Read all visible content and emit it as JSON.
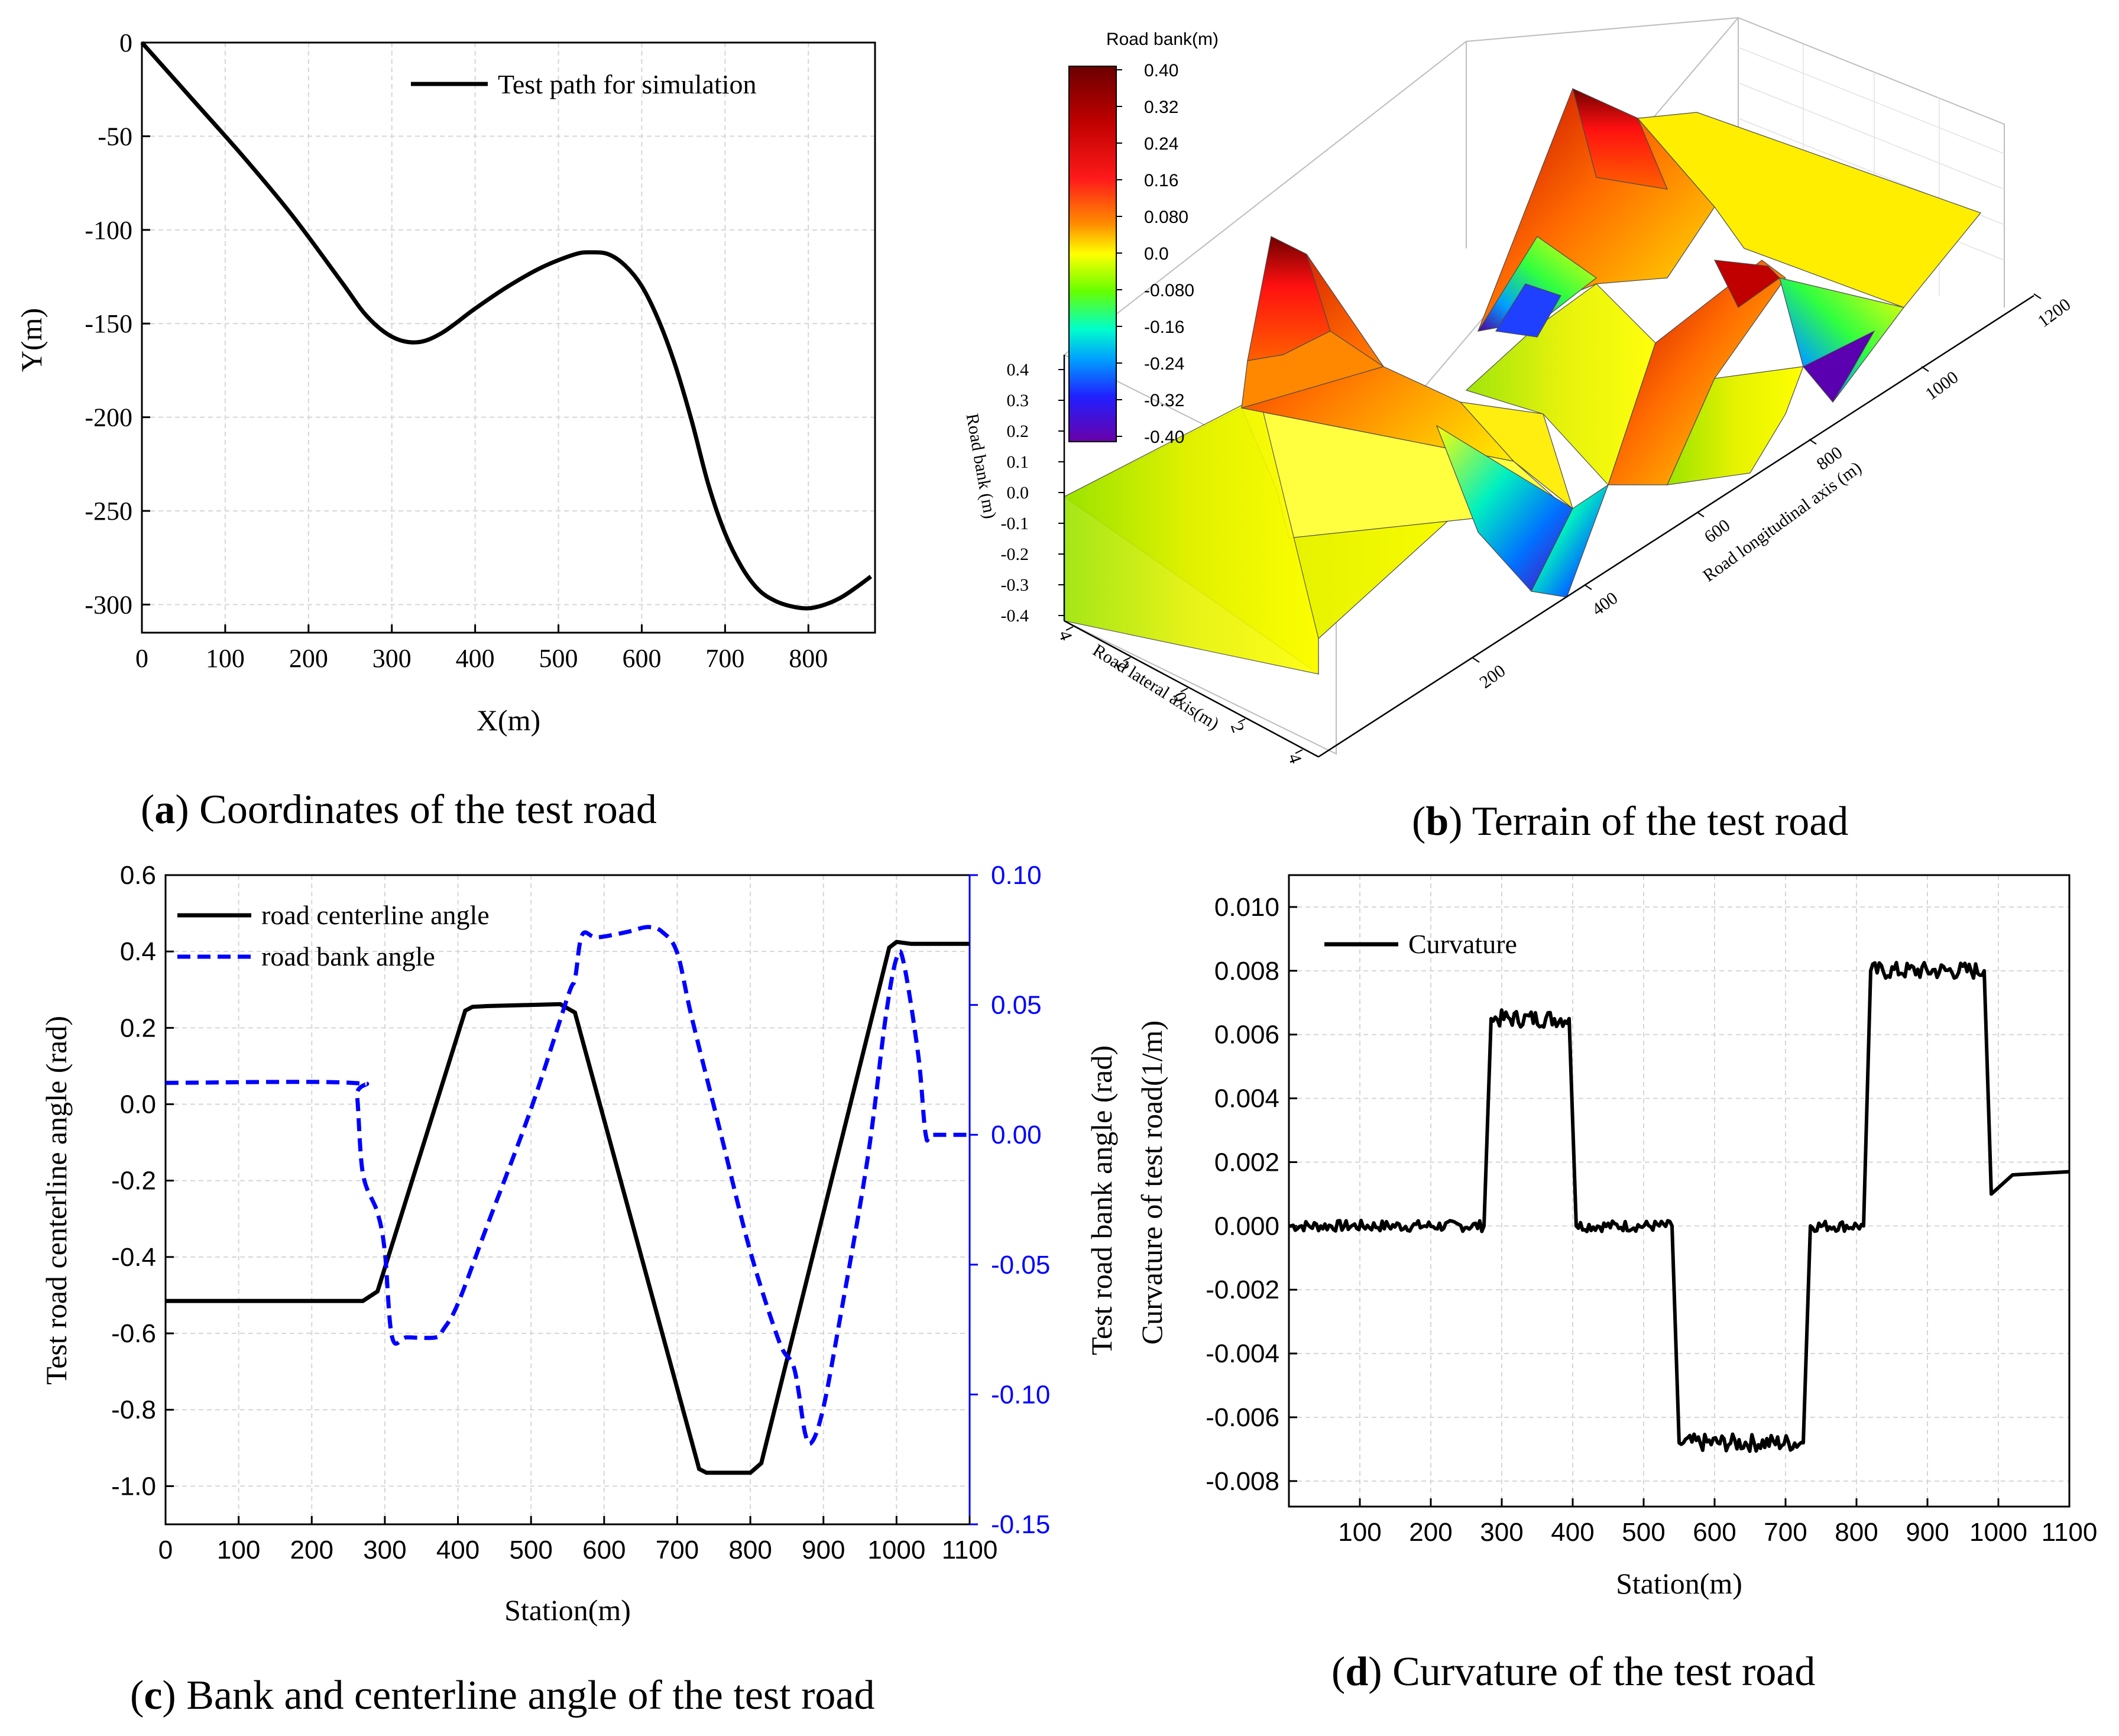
{
  "chart_data": [
    {
      "id": "a",
      "type": "line",
      "caption_letter": "a",
      "caption_text": " Coordinates of the test road",
      "title": "",
      "xlabel": "X(m)",
      "ylabel": "Y(m)",
      "xlim": [
        0,
        880
      ],
      "ylim": [
        -315,
        0
      ],
      "xticks": [
        "0",
        "100",
        "200",
        "300",
        "400",
        "500",
        "600",
        "700",
        "800"
      ],
      "yticks": [
        "0",
        "-50",
        "-100",
        "-150",
        "-200",
        "-250",
        "-300"
      ],
      "legend": "top-right",
      "series": [
        {
          "name": "Test path for simulation",
          "color": "#000000",
          "x": [
            0,
            60,
            120,
            180,
            240,
            270,
            300,
            330,
            360,
            400,
            440,
            480,
            520,
            540,
            560,
            580,
            600,
            620,
            640,
            660,
            680,
            700,
            720,
            740,
            760,
            780,
            800,
            820,
            840,
            860,
            875
          ],
          "y": [
            0,
            -30,
            -60,
            -92,
            -128,
            -146,
            -157,
            -160,
            -155,
            -142,
            -130,
            -120,
            -113,
            -112,
            -113,
            -119,
            -130,
            -148,
            -172,
            -202,
            -236,
            -262,
            -280,
            -292,
            -298,
            -301,
            -302,
            -300,
            -296,
            -290,
            -285
          ]
        }
      ]
    },
    {
      "id": "b",
      "type": "surface",
      "caption_letter": "b",
      "caption_text": " Terrain of the test road",
      "colorbar_title": "Road bank(m)",
      "colorbar_ticks": [
        "0.40",
        "0.32",
        "0.24",
        "0.16",
        "0.080",
        "0.0",
        "-0.080",
        "-0.16",
        "-0.24",
        "-0.32",
        "-0.40"
      ],
      "z_label": "Road bank (m)",
      "z_ticks": [
        "0.4",
        "0.3",
        "0.2",
        "0.1",
        "0.0",
        "-0.1",
        "-0.2",
        "-0.3",
        "-0.4"
      ],
      "x_label": "Road lateral axis(m)",
      "x_ticks": [
        "4",
        "2",
        "0",
        "2",
        "4"
      ],
      "y_label": "Road longitudinal axis (m)",
      "y_ticks": [
        "200",
        "400",
        "600",
        "800",
        "1000",
        "1200"
      ]
    },
    {
      "id": "c",
      "type": "line",
      "caption_letter": "c",
      "caption_text": " Bank and centerline angle of the test road",
      "title": "",
      "xlabel": "Station(m)",
      "ylabel": "Test road centerline angle (rad)",
      "y2label": "Test road bank angle (rad)",
      "xlim": [
        0,
        1100
      ],
      "ylim": [
        -1.1,
        0.6
      ],
      "y2lim": [
        -0.15,
        0.1
      ],
      "xticks": [
        "0",
        "100",
        "200",
        "300",
        "400",
        "500",
        "600",
        "700",
        "800",
        "900",
        "1000",
        "1100"
      ],
      "yticks": [
        "0.6",
        "0.4",
        "0.2",
        "0.0",
        "-0.2",
        "-0.4",
        "-0.6",
        "-0.8",
        "-1.0"
      ],
      "y2ticks": [
        "0.10",
        "0.05",
        "0.00",
        "-0.05",
        "-0.10",
        "-0.15"
      ],
      "y2color": "#0000ff",
      "legend": "top-left",
      "series": [
        {
          "name": "road centerline angle",
          "color": "#000000",
          "dash": "solid",
          "axis": "left",
          "x": [
            0,
            270,
            290,
            410,
            420,
            440,
            540,
            560,
            730,
            740,
            800,
            815,
            990,
            1000,
            1020,
            1100
          ],
          "y": [
            -0.515,
            -0.515,
            -0.49,
            0.245,
            0.255,
            0.257,
            0.262,
            0.24,
            -0.955,
            -0.965,
            -0.965,
            -0.94,
            0.41,
            0.425,
            0.42,
            0.42
          ]
        },
        {
          "name": "road bank angle",
          "color": "#0000ff",
          "dash": "dashed",
          "axis": "right",
          "x": [
            0,
            255,
            262,
            270,
            290,
            300,
            310,
            330,
            370,
            380,
            400,
            440,
            500,
            550,
            560,
            570,
            590,
            630,
            660,
            680,
            700,
            720,
            760,
            800,
            840,
            860,
            875,
            885,
            900,
            920,
            960,
            985,
            1000,
            1010,
            1030,
            1040,
            1050,
            1100
          ],
          "y": [
            0.02,
            0.02,
            0.015,
            -0.015,
            -0.03,
            -0.045,
            -0.078,
            -0.078,
            -0.078,
            -0.075,
            -0.065,
            -0.035,
            0.01,
            0.053,
            0.06,
            0.077,
            0.076,
            0.078,
            0.08,
            0.078,
            0.07,
            0.045,
            0.0,
            -0.045,
            -0.08,
            -0.09,
            -0.115,
            -0.118,
            -0.105,
            -0.075,
            -0.01,
            0.045,
            0.068,
            0.066,
            0.03,
            0.0,
            0.0,
            0.0
          ]
        }
      ]
    },
    {
      "id": "d",
      "type": "line",
      "caption_letter": "d",
      "caption_text": " Curvature of the test road",
      "title": "",
      "xlabel": "Station(m)",
      "ylabel": "Curvature of test road(1/m)",
      "xlim": [
        0,
        1100
      ],
      "ylim": [
        -0.0088,
        0.011
      ],
      "xticks": [
        "100",
        "200",
        "300",
        "400",
        "500",
        "600",
        "700",
        "800",
        "900",
        "1000",
        "1100"
      ],
      "yticks": [
        "0.010",
        "0.008",
        "0.006",
        "0.004",
        "0.002",
        "0.000",
        "-0.002",
        "-0.004",
        "-0.006",
        "-0.008"
      ],
      "legend": "top-left",
      "series": [
        {
          "name": "Curvature",
          "color": "#000000",
          "x": [
            0,
            275,
            285,
            395,
            405,
            540,
            550,
            725,
            735,
            810,
            820,
            980,
            990,
            1000,
            1020,
            1100
          ],
          "y": [
            0.0,
            0.0,
            0.0065,
            0.0065,
            0.0,
            0.0,
            -0.0068,
            -0.0068,
            0.0,
            0.0,
            0.008,
            0.008,
            0.001,
            0.0012,
            0.0016,
            0.0017
          ]
        }
      ]
    }
  ]
}
